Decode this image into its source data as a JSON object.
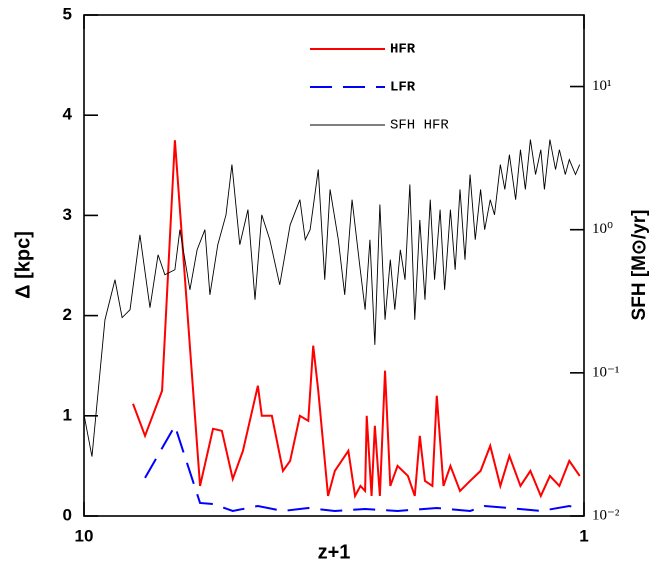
{
  "chart_data": {
    "type": "line",
    "xlabel": "z+1",
    "ylabel": "Δ [kpc]",
    "y2label": "SFH [M⊙/yr]",
    "xscale": "log",
    "xlim": [
      10,
      1
    ],
    "xticks": [
      10,
      1
    ],
    "ylim": [
      0,
      5
    ],
    "yticks": [
      0,
      1,
      2,
      3,
      4,
      5
    ],
    "y2scale": "log",
    "y2lim": [
      0.01,
      31.6
    ],
    "y2ticks": [
      {
        "value": 0.01,
        "label": "10⁻²"
      },
      {
        "value": 0.1,
        "label": "10⁻¹"
      },
      {
        "value": 1,
        "label": "10⁰"
      },
      {
        "value": 10,
        "label": "10¹"
      }
    ],
    "legend": "upper center",
    "series": [
      {
        "name": "HFR",
        "color": "#ff0000",
        "linestyle": "solid",
        "x": [
          7.98,
          7.55,
          6.98,
          6.58,
          5.86,
          5.52,
          5.3,
          5.04,
          4.81,
          4.49,
          4.41,
          4.21,
          4.0,
          3.87,
          3.7,
          3.56,
          3.48,
          3.4,
          3.25,
          3.15,
          2.96,
          2.87,
          2.8,
          2.74,
          2.72,
          2.66,
          2.62,
          2.56,
          2.5,
          2.44,
          2.36,
          2.25,
          2.18,
          2.13,
          2.08,
          2.01,
          1.97,
          1.91,
          1.85,
          1.77,
          1.69,
          1.61,
          1.54,
          1.47,
          1.41,
          1.34,
          1.28,
          1.22,
          1.17,
          1.12,
          1.07,
          1.02
        ],
        "values": [
          1.12,
          0.8,
          1.25,
          3.75,
          0.3,
          0.87,
          0.85,
          0.37,
          0.65,
          1.3,
          1.0,
          1.0,
          0.45,
          0.55,
          1.0,
          0.95,
          1.7,
          1.25,
          0.2,
          0.45,
          0.65,
          0.2,
          0.3,
          0.25,
          1.0,
          0.2,
          0.9,
          0.2,
          1.45,
          0.3,
          0.5,
          0.4,
          0.2,
          0.8,
          0.35,
          0.3,
          1.2,
          0.3,
          0.5,
          0.25,
          0.35,
          0.45,
          0.7,
          0.3,
          0.6,
          0.3,
          0.45,
          0.2,
          0.4,
          0.3,
          0.55,
          0.4
        ]
      },
      {
        "name": "LFR",
        "color": "#0000ff",
        "linestyle": "dashed",
        "x": [
          7.55,
          6.58,
          5.86,
          5.52,
          5.04,
          4.49,
          4.0,
          3.56,
          3.15,
          2.74,
          2.36,
          1.97,
          1.69,
          1.58,
          1.41,
          1.22,
          1.07,
          1.02
        ],
        "values": [
          0.38,
          0.9,
          0.13,
          0.12,
          0.05,
          0.1,
          0.05,
          0.08,
          0.05,
          0.07,
          0.05,
          0.08,
          0.05,
          0.1,
          0.08,
          0.05,
          0.1,
          0.07
        ]
      },
      {
        "name": "SFH HFR",
        "color": "#000000",
        "linestyle": "thin",
        "axis": "y2",
        "x": [
          10.0,
          9.64,
          9.08,
          8.67,
          8.39,
          8.09,
          7.73,
          7.38,
          7.11,
          6.89,
          6.58,
          6.43,
          6.14,
          5.94,
          5.73,
          5.6,
          5.4,
          5.2,
          5.06,
          4.88,
          4.7,
          4.55,
          4.41,
          4.25,
          4.06,
          3.87,
          3.7,
          3.61,
          3.53,
          3.4,
          3.3,
          3.22,
          3.1,
          3.01,
          2.91,
          2.81,
          2.74,
          2.68,
          2.62,
          2.56,
          2.5,
          2.44,
          2.39,
          2.33,
          2.28,
          2.23,
          2.18,
          2.13,
          2.08,
          2.03,
          1.99,
          1.94,
          1.9,
          1.85,
          1.81,
          1.77,
          1.73,
          1.69,
          1.65,
          1.61,
          1.58,
          1.54,
          1.51,
          1.47,
          1.44,
          1.41,
          1.37,
          1.34,
          1.31,
          1.28,
          1.25,
          1.22,
          1.2,
          1.17,
          1.14,
          1.12,
          1.09,
          1.07,
          1.04,
          1.02
        ],
        "values": [
          0.051,
          0.026,
          0.235,
          0.447,
          0.243,
          0.276,
          0.92,
          0.285,
          0.668,
          0.484,
          0.525,
          1.0,
          0.38,
          0.724,
          1.0,
          0.351,
          0.785,
          1.27,
          2.85,
          0.785,
          1.38,
          0.324,
          1.27,
          0.851,
          0.412,
          1.08,
          1.62,
          0.851,
          1.0,
          2.63,
          0.447,
          1.91,
          0.851,
          0.351,
          1.62,
          0.57,
          0.276,
          0.851,
          0.157,
          1.5,
          0.235,
          0.617,
          0.276,
          0.724,
          0.447,
          2.07,
          0.235,
          1.17,
          0.324,
          1.62,
          0.447,
          1.38,
          0.38,
          1.38,
          0.525,
          1.91,
          0.617,
          2.43,
          0.851,
          1.91,
          1.0,
          1.62,
          1.27,
          2.85,
          1.91,
          3.34,
          1.62,
          3.62,
          1.91,
          4.26,
          2.43,
          3.62,
          1.91,
          4.26,
          2.63,
          3.62,
          2.43,
          3.09,
          2.43,
          2.85
        ]
      }
    ]
  }
}
